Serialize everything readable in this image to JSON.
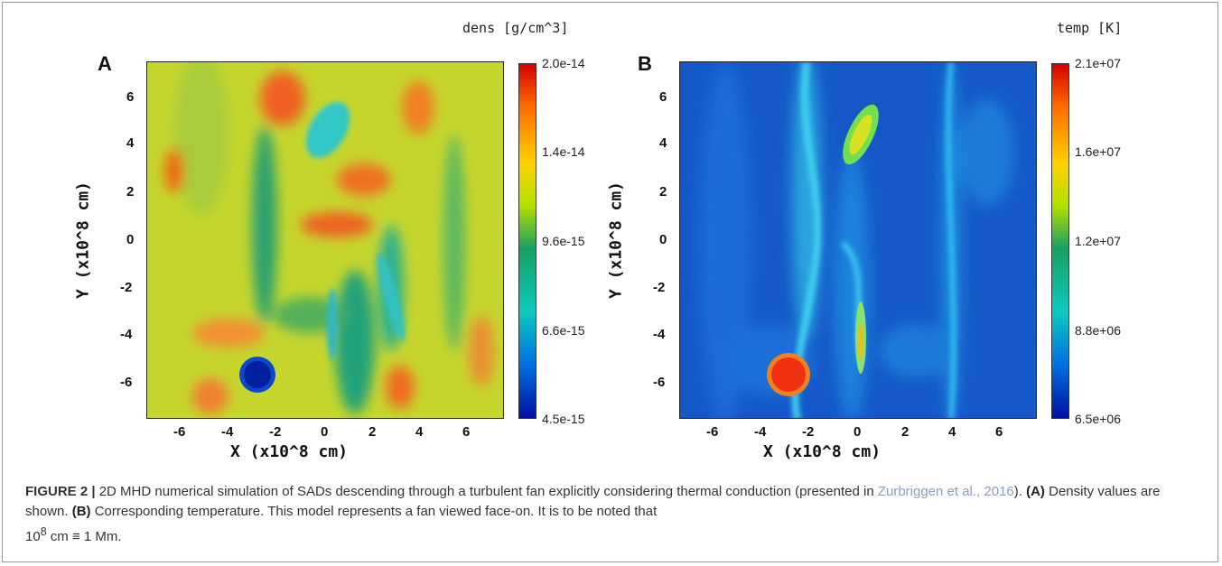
{
  "panels": [
    {
      "label": "A",
      "title": "dens [g/cm^3]",
      "xlabel": "X (x10^8 cm)",
      "ylabel": "Y (x10^8 cm)",
      "xticks": [
        "-6",
        "-4",
        "-2",
        "0",
        "2",
        "4",
        "6"
      ],
      "yticks": [
        "6",
        "4",
        "2",
        "0",
        "-2",
        "-4",
        "-6"
      ],
      "colorbar": [
        "2.0e-14",
        "1.4e-14",
        "9.6e-15",
        "6.6e-15",
        "4.5e-15"
      ],
      "colors": {
        "background": "#c8d830",
        "accent_high": "#f04010",
        "accent_low": "#10a088",
        "feature": "#1020a0"
      }
    },
    {
      "label": "B",
      "title": "temp [K]",
      "xlabel": "X (x10^8 cm)",
      "ylabel": "Y (x10^8 cm)",
      "xticks": [
        "-6",
        "-4",
        "-2",
        "0",
        "2",
        "4",
        "6"
      ],
      "yticks": [
        "6",
        "4",
        "2",
        "0",
        "-2",
        "-4",
        "-6"
      ],
      "colorbar": [
        "2.1e+07",
        "1.6e+07",
        "1.2e+07",
        "8.8e+06",
        "6.5e+06"
      ],
      "colors": {
        "background": "#1050c8",
        "streak": "#20c8e8",
        "hot": "#f03010"
      }
    }
  ],
  "caption": {
    "figure_label": "FIGURE 2 |",
    "text1": " 2D MHD numerical simulation of SADs descending through a turbulent fan explicitly considering thermal conduction (presented in ",
    "citation": "Zurbriggen et al., 2016",
    "text2": "). ",
    "a_label": "(A)",
    "a_text": " Density values are shown. ",
    "b_label": "(B)",
    "b_text": " Corresponding temperature. This model represents a fan viewed face-on. It is to be noted that ",
    "formula_base": "10",
    "formula_exp": "8",
    "formula_rest": " cm ≡ 1 Mm."
  }
}
